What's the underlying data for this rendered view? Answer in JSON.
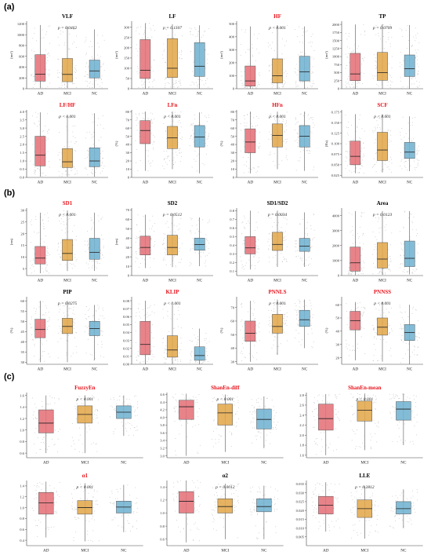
{
  "sections": [
    {
      "label": "(a)"
    },
    {
      "label": "(b)"
    },
    {
      "label": "(c)"
    }
  ],
  "colors": {
    "AD": "#e5727a",
    "MCI": "#e2a84c",
    "NC": "#72b3d1",
    "title_sig": "#e8141c",
    "title_ns": "#000000",
    "jitter": "#b8b8b8",
    "axis": "#444444"
  },
  "chart_data": [
    {
      "type": "box",
      "section": "(a)",
      "title": "VLF",
      "significant": false,
      "pvalue": "p = 0.0462",
      "ylabel": "(ms²)",
      "yticks": [
        0,
        200,
        400,
        600,
        800,
        1000,
        1200
      ],
      "ylim": [
        0,
        1250
      ],
      "categories": [
        "AD",
        "MCI",
        "NC"
      ],
      "boxes": [
        {
          "min": 10,
          "q1": 140,
          "median": 270,
          "q3": 630,
          "max": 1180
        },
        {
          "min": 10,
          "q1": 130,
          "median": 265,
          "q3": 560,
          "max": 1150
        },
        {
          "min": 10,
          "q1": 200,
          "median": 330,
          "q3": 530,
          "max": 1100
        }
      ]
    },
    {
      "type": "box",
      "section": "(a)",
      "title": "LF",
      "significant": false,
      "pvalue": "p = 0.1107",
      "ylabel": "(ms²)",
      "yticks": [
        0,
        50,
        100,
        150,
        200,
        250,
        300
      ],
      "ylim": [
        0,
        330
      ],
      "categories": [
        "AD",
        "MCI",
        "NC"
      ],
      "boxes": [
        {
          "min": 0,
          "q1": 50,
          "median": 90,
          "q3": 240,
          "max": 320
        },
        {
          "min": 0,
          "q1": 55,
          "median": 100,
          "q3": 245,
          "max": 315
        },
        {
          "min": 0,
          "q1": 60,
          "median": 110,
          "q3": 225,
          "max": 310
        }
      ]
    },
    {
      "type": "box",
      "section": "(a)",
      "title": "HF",
      "significant": true,
      "pvalue": "p < 0.001",
      "ylabel": "(ms²)",
      "yticks": [
        0,
        100,
        200,
        300,
        400,
        500
      ],
      "ylim": [
        0,
        520
      ],
      "categories": [
        "AD",
        "MCI",
        "NC"
      ],
      "boxes": [
        {
          "min": 0,
          "q1": 20,
          "median": 60,
          "q3": 175,
          "max": 480
        },
        {
          "min": 0,
          "q1": 45,
          "median": 100,
          "q3": 230,
          "max": 490
        },
        {
          "min": 0,
          "q1": 60,
          "median": 130,
          "q3": 250,
          "max": 480
        }
      ]
    },
    {
      "type": "box",
      "section": "(a)",
      "title": "TP",
      "significant": false,
      "pvalue": "p = 0.0709",
      "ylabel": "(ms²)",
      "yticks": [
        0,
        250,
        500,
        750,
        1000,
        1250,
        1500,
        1750,
        2000
      ],
      "ylim": [
        0,
        2100
      ],
      "categories": [
        "AD",
        "MCI",
        "NC"
      ],
      "boxes": [
        {
          "min": 0,
          "q1": 250,
          "median": 460,
          "q3": 1100,
          "max": 2000
        },
        {
          "min": 0,
          "q1": 260,
          "median": 500,
          "q3": 1130,
          "max": 2000
        },
        {
          "min": 0,
          "q1": 380,
          "median": 620,
          "q3": 1050,
          "max": 1980
        }
      ]
    },
    {
      "type": "box",
      "section": "(a)",
      "title": "LF/HF",
      "significant": true,
      "pvalue": "p < 0.001",
      "ylabel": "",
      "yticks": [
        0.0,
        0.5,
        1.0,
        1.5,
        2.0,
        2.5,
        3.0,
        3.5,
        4.0
      ],
      "ylim": [
        0,
        4.1
      ],
      "categories": [
        "AD",
        "MCI",
        "NC"
      ],
      "boxes": [
        {
          "min": 0.05,
          "q1": 0.7,
          "median": 1.35,
          "q3": 2.5,
          "max": 3.95
        },
        {
          "min": 0.05,
          "q1": 0.6,
          "median": 0.95,
          "q3": 1.75,
          "max": 3.7
        },
        {
          "min": 0.05,
          "q1": 0.65,
          "median": 1.0,
          "q3": 1.8,
          "max": 3.9
        }
      ]
    },
    {
      "type": "box",
      "section": "(a)",
      "title": "LFn",
      "significant": true,
      "pvalue": "p < 0.001",
      "ylabel": "(%)",
      "yticks": [
        0,
        10,
        20,
        30,
        40,
        50,
        60,
        70,
        80
      ],
      "ylim": [
        0,
        82
      ],
      "categories": [
        "AD",
        "MCI",
        "NC"
      ],
      "boxes": [
        {
          "min": 8,
          "q1": 41,
          "median": 57,
          "q3": 69,
          "max": 80
        },
        {
          "min": 10,
          "q1": 35,
          "median": 48,
          "q3": 62,
          "max": 80
        },
        {
          "min": 5,
          "q1": 37,
          "median": 49,
          "q3": 63,
          "max": 79
        }
      ]
    },
    {
      "type": "box",
      "section": "(a)",
      "title": "HFn",
      "significant": true,
      "pvalue": "p < 0.001",
      "ylabel": "(%)",
      "yticks": [
        0,
        10,
        20,
        30,
        40,
        50,
        60,
        70,
        80
      ],
      "ylim": [
        0,
        82
      ],
      "categories": [
        "AD",
        "MCI",
        "NC"
      ],
      "boxes": [
        {
          "min": 5,
          "q1": 30,
          "median": 43,
          "q3": 59,
          "max": 80
        },
        {
          "min": 10,
          "q1": 37,
          "median": 51,
          "q3": 65,
          "max": 80
        },
        {
          "min": 8,
          "q1": 37,
          "median": 50,
          "q3": 63,
          "max": 80
        }
      ]
    },
    {
      "type": "box",
      "section": "(a)",
      "title": "SCF",
      "significant": true,
      "pvalue": "p < 0.001",
      "ylabel": "(Hz)",
      "yticks": [
        0.025,
        0.05,
        0.075,
        0.1,
        0.125,
        0.15,
        0.175
      ],
      "ylim": [
        0.02,
        0.18
      ],
      "categories": [
        "AD",
        "MCI",
        "NC"
      ],
      "boxes": [
        {
          "min": 0.03,
          "q1": 0.05,
          "median": 0.07,
          "q3": 0.106,
          "max": 0.17
        },
        {
          "min": 0.032,
          "q1": 0.06,
          "median": 0.085,
          "q3": 0.127,
          "max": 0.17
        },
        {
          "min": 0.035,
          "q1": 0.065,
          "median": 0.08,
          "q3": 0.103,
          "max": 0.165
        }
      ]
    },
    {
      "type": "box",
      "section": "(b)",
      "title": "SD1",
      "significant": true,
      "pvalue": "p < 0.001",
      "ylabel": "(ms)",
      "yticks": [
        5,
        10,
        15,
        20,
        25,
        30
      ],
      "ylim": [
        2,
        31
      ],
      "categories": [
        "AD",
        "MCI",
        "NC"
      ],
      "boxes": [
        {
          "min": 3,
          "q1": 7,
          "median": 9.5,
          "q3": 14.5,
          "max": 29
        },
        {
          "min": 4,
          "q1": 8.5,
          "median": 11.5,
          "q3": 17.5,
          "max": 30
        },
        {
          "min": 4,
          "q1": 9,
          "median": 12,
          "q3": 18,
          "max": 29
        }
      ]
    },
    {
      "type": "box",
      "section": "(b)",
      "title": "SD2",
      "significant": false,
      "pvalue": "p = 0.0512",
      "ylabel": "(ms)",
      "yticks": [
        0,
        10,
        20,
        30,
        40,
        50,
        60,
        70
      ],
      "ylim": [
        0,
        72
      ],
      "categories": [
        "AD",
        "MCI",
        "NC"
      ],
      "boxes": [
        {
          "min": 8,
          "q1": 22,
          "median": 30,
          "q3": 42,
          "max": 65
        },
        {
          "min": 9,
          "q1": 22,
          "median": 30,
          "q3": 43,
          "max": 66
        },
        {
          "min": 10,
          "q1": 27,
          "median": 33,
          "q3": 40,
          "max": 62
        }
      ]
    },
    {
      "type": "box",
      "section": "(b)",
      "title": "SD1/SD2",
      "significant": false,
      "pvalue": "p = 0.0034",
      "ylabel": "",
      "yticks": [
        0.1,
        0.2,
        0.3,
        0.4,
        0.5,
        0.6,
        0.7,
        0.8
      ],
      "ylim": [
        0.05,
        0.83
      ],
      "categories": [
        "AD",
        "MCI",
        "NC"
      ],
      "boxes": [
        {
          "min": 0.12,
          "q1": 0.3,
          "median": 0.37,
          "q3": 0.5,
          "max": 0.8
        },
        {
          "min": 0.15,
          "q1": 0.34,
          "median": 0.41,
          "q3": 0.55,
          "max": 0.8
        },
        {
          "min": 0.15,
          "q1": 0.33,
          "median": 0.39,
          "q3": 0.48,
          "max": 0.78
        }
      ]
    },
    {
      "type": "box",
      "section": "(b)",
      "title": "Area",
      "significant": false,
      "pvalue": "p = 0.0123",
      "ylabel": "",
      "yticks": [
        0,
        1000,
        2000,
        3000,
        4000
      ],
      "ylim": [
        0,
        4500
      ],
      "categories": [
        "AD",
        "MCI",
        "NC"
      ],
      "boxes": [
        {
          "min": 30,
          "q1": 300,
          "median": 850,
          "q3": 1900,
          "max": 4300
        },
        {
          "min": 50,
          "q1": 500,
          "median": 1100,
          "q3": 2200,
          "max": 4300
        },
        {
          "min": 80,
          "q1": 600,
          "median": 1150,
          "q3": 2300,
          "max": 4300
        }
      ]
    },
    {
      "type": "box",
      "section": "(b)",
      "title": "PIP",
      "significant": false,
      "pvalue": "p = 0.0275",
      "ylabel": "(%)",
      "yticks": [
        30,
        35,
        40,
        45,
        50,
        55,
        60
      ],
      "ylim": [
        29,
        62
      ],
      "categories": [
        "AD",
        "MCI",
        "NC"
      ],
      "boxes": [
        {
          "min": 30,
          "q1": 42,
          "median": 46,
          "q3": 51,
          "max": 60
        },
        {
          "min": 30,
          "q1": 44,
          "median": 47.5,
          "q3": 51.5,
          "max": 60
        },
        {
          "min": 31,
          "q1": 43,
          "median": 46.5,
          "q3": 50,
          "max": 58
        }
      ]
    },
    {
      "type": "box",
      "section": "(b)",
      "title": "KLIP",
      "significant": true,
      "pvalue": "p < 0.001",
      "ylabel": "",
      "yticks": [
        0.0,
        0.01,
        0.02,
        0.03,
        0.04,
        0.05,
        0.06,
        0.07,
        0.08
      ],
      "ylim": [
        0,
        0.085
      ],
      "categories": [
        "AD",
        "MCI",
        "NC"
      ],
      "boxes": [
        {
          "min": 0.0,
          "q1": 0.012,
          "median": 0.025,
          "q3": 0.054,
          "max": 0.08
        },
        {
          "min": 0.0,
          "q1": 0.009,
          "median": 0.018,
          "q3": 0.036,
          "max": 0.075
        },
        {
          "min": 0.0,
          "q1": 0.005,
          "median": 0.011,
          "q3": 0.022,
          "max": 0.045
        }
      ]
    },
    {
      "type": "box",
      "section": "(b)",
      "title": "PNNLS",
      "significant": true,
      "pvalue": "p < 0.001",
      "ylabel": "(%)",
      "yticks": [
        30,
        40,
        50,
        60,
        70
      ],
      "ylim": [
        28,
        78
      ],
      "categories": [
        "AD",
        "MCI",
        "NC"
      ],
      "boxes": [
        {
          "min": 30,
          "q1": 45,
          "median": 51,
          "q3": 60,
          "max": 75
        },
        {
          "min": 35,
          "q1": 51,
          "median": 56,
          "q3": 65,
          "max": 76
        },
        {
          "min": 40,
          "q1": 56,
          "median": 61,
          "q3": 68,
          "max": 76
        }
      ]
    },
    {
      "type": "box",
      "section": "(b)",
      "title": "PNNSS",
      "significant": true,
      "pvalue": "p < 0.001",
      "ylabel": "(%)",
      "yticks": [
        20,
        30,
        40,
        50,
        60
      ],
      "ylim": [
        15,
        66
      ],
      "categories": [
        "AD",
        "MCI",
        "NC"
      ],
      "boxes": [
        {
          "min": 18,
          "q1": 41,
          "median": 48,
          "q3": 55,
          "max": 62
        },
        {
          "min": 17,
          "q1": 37,
          "median": 43,
          "q3": 50,
          "max": 62
        },
        {
          "min": 15,
          "q1": 33,
          "median": 39,
          "q3": 45,
          "max": 60
        }
      ]
    },
    {
      "type": "box",
      "section": "(c)",
      "title": "FuzzyEn",
      "significant": true,
      "pvalue": "p < 0.001",
      "ylabel": "",
      "yticks": [
        0.6,
        0.8,
        1.0,
        1.2,
        1.4,
        1.6
      ],
      "ylim": [
        0.52,
        1.65
      ],
      "categories": [
        "AD",
        "MCI",
        "NC"
      ],
      "boxes": [
        {
          "min": 0.6,
          "q1": 0.95,
          "median": 1.12,
          "q3": 1.35,
          "max": 1.6
        },
        {
          "min": 0.6,
          "q1": 1.12,
          "median": 1.27,
          "q3": 1.42,
          "max": 1.6
        },
        {
          "min": 0.9,
          "q1": 1.2,
          "median": 1.31,
          "q3": 1.42,
          "max": 1.6
        }
      ]
    },
    {
      "type": "box",
      "section": "(c)",
      "title": "ShanEn-diff",
      "significant": true,
      "pvalue": "p < 0.001",
      "ylabel": "",
      "yticks": [
        3.0,
        3.2,
        3.4,
        3.6,
        3.8,
        4.0,
        4.2,
        4.4,
        4.6
      ],
      "ylim": [
        2.95,
        4.65
      ],
      "categories": [
        "AD",
        "MCI",
        "NC"
      ],
      "boxes": [
        {
          "min": 3.0,
          "q1": 3.95,
          "median": 4.28,
          "q3": 4.45,
          "max": 4.62
        },
        {
          "min": 3.1,
          "q1": 3.8,
          "median": 4.12,
          "q3": 4.35,
          "max": 4.6
        },
        {
          "min": 3.2,
          "q1": 3.7,
          "median": 3.95,
          "q3": 4.22,
          "max": 4.55
        }
      ]
    },
    {
      "type": "box",
      "section": "(c)",
      "title": "ShanEn-mean",
      "significant": true,
      "pvalue": "p < 0.001",
      "ylabel": "",
      "yticks": [
        1.6,
        1.8,
        2.0,
        2.2,
        2.4,
        2.6,
        2.8
      ],
      "ylim": [
        1.55,
        2.85
      ],
      "categories": [
        "AD",
        "MCI",
        "NC"
      ],
      "boxes": [
        {
          "min": 1.6,
          "q1": 2.1,
          "median": 2.33,
          "q3": 2.62,
          "max": 2.82
        },
        {
          "min": 1.7,
          "q1": 2.28,
          "median": 2.5,
          "q3": 2.68,
          "max": 2.83
        },
        {
          "min": 1.8,
          "q1": 2.3,
          "median": 2.52,
          "q3": 2.67,
          "max": 2.83
        }
      ]
    },
    {
      "type": "box",
      "section": "(c)",
      "title": "α1",
      "significant": true,
      "pvalue": "p < 0.001",
      "ylabel": "",
      "yticks": [
        0.4,
        0.6,
        0.8,
        1.0,
        1.2,
        1.4
      ],
      "ylim": [
        0.3,
        1.5
      ],
      "categories": [
        "AD",
        "MCI",
        "NC"
      ],
      "boxes": [
        {
          "min": 0.45,
          "q1": 0.88,
          "median": 1.09,
          "q3": 1.28,
          "max": 1.48
        },
        {
          "min": 0.38,
          "q1": 0.88,
          "median": 1.0,
          "q3": 1.13,
          "max": 1.45
        },
        {
          "min": 0.55,
          "q1": 0.9,
          "median": 1.01,
          "q3": 1.12,
          "max": 1.42
        }
      ]
    },
    {
      "type": "box",
      "section": "(c)",
      "title": "α2",
      "significant": false,
      "pvalue": "p = 0.0012",
      "ylabel": "",
      "yticks": [
        0.6,
        0.8,
        1.0,
        1.2,
        1.4
      ],
      "ylim": [
        0.5,
        1.5
      ],
      "categories": [
        "AD",
        "MCI",
        "NC"
      ],
      "boxes": [
        {
          "min": 0.55,
          "q1": 1.0,
          "median": 1.18,
          "q3": 1.33,
          "max": 1.5
        },
        {
          "min": 0.6,
          "q1": 1.0,
          "median": 1.1,
          "q3": 1.22,
          "max": 1.45
        },
        {
          "min": 0.6,
          "q1": 1.02,
          "median": 1.1,
          "q3": 1.22,
          "max": 1.42
        }
      ]
    },
    {
      "type": "box",
      "section": "(c)",
      "title": "LLE",
      "significant": false,
      "pvalue": "p = 0.2812",
      "ylabel": "",
      "yticks": [
        0.005,
        0.01,
        0.015,
        0.02,
        0.025,
        0.03,
        0.035
      ],
      "ylim": [
        0.0,
        0.037
      ],
      "categories": [
        "AD",
        "MCI",
        "NC"
      ],
      "boxes": [
        {
          "min": 0.008,
          "q1": 0.018,
          "median": 0.023,
          "q3": 0.028,
          "max": 0.036
        },
        {
          "min": 0.004,
          "q1": 0.016,
          "median": 0.021,
          "q3": 0.026,
          "max": 0.034
        },
        {
          "min": 0.01,
          "q1": 0.018,
          "median": 0.021,
          "q3": 0.025,
          "max": 0.032
        }
      ]
    }
  ]
}
